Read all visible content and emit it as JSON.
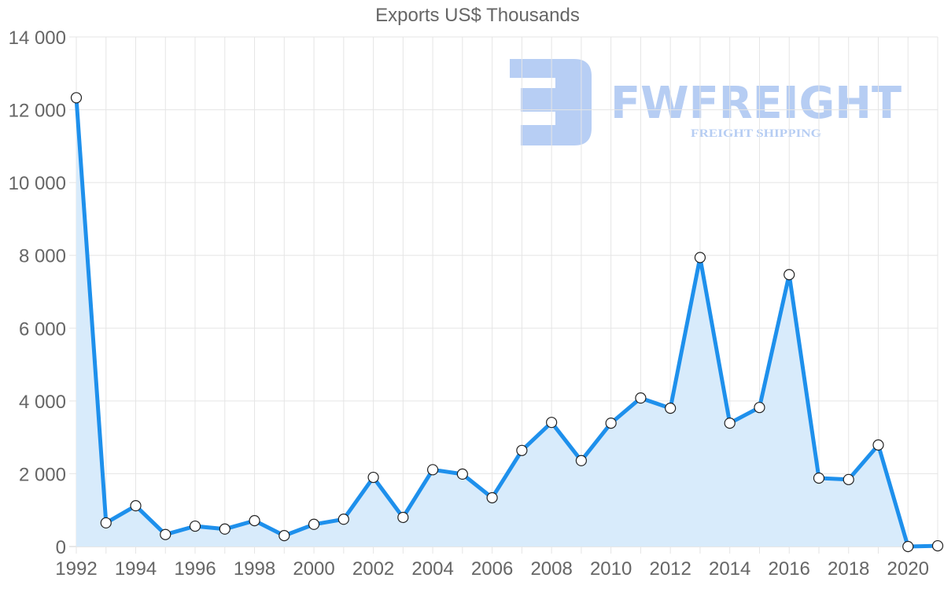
{
  "chart_data": {
    "type": "area",
    "title": "Exports US$ Thousands",
    "xlabel": "",
    "ylabel": "",
    "x": [
      1992,
      1993,
      1994,
      1995,
      1996,
      1997,
      1998,
      1999,
      2000,
      2001,
      2002,
      2003,
      2004,
      2005,
      2006,
      2007,
      2008,
      2009,
      2010,
      2011,
      2012,
      2013,
      2014,
      2015,
      2016,
      2017,
      2018,
      2019,
      2020,
      2021
    ],
    "series": [
      {
        "name": "Exports US$ Thousands",
        "color": "#1e90ec",
        "fill": "#d8ebfb",
        "values": [
          12330,
          650,
          1120,
          330,
          560,
          480,
          710,
          300,
          610,
          750,
          1900,
          800,
          2110,
          1990,
          1340,
          2640,
          3410,
          2360,
          3390,
          4080,
          3800,
          7940,
          3390,
          3820,
          7470,
          1880,
          1840,
          2790,
          0,
          20
        ]
      }
    ],
    "ylim": [
      0,
      14000
    ],
    "yticks": [
      "0",
      "2 000",
      "4 000",
      "6 000",
      "8 000",
      "10 000",
      "12 000",
      "14 000"
    ],
    "xticks": [
      "1992",
      "1994",
      "1996",
      "1998",
      "2000",
      "2002",
      "2004",
      "2006",
      "2008",
      "2010",
      "2012",
      "2014",
      "2016",
      "2018",
      "2020"
    ],
    "grid": true,
    "legend": "none"
  },
  "watermark": {
    "brand": "FWFREIGHT",
    "tagline": "FREIGHT SHIPPING",
    "color": "#a9c6f2"
  }
}
